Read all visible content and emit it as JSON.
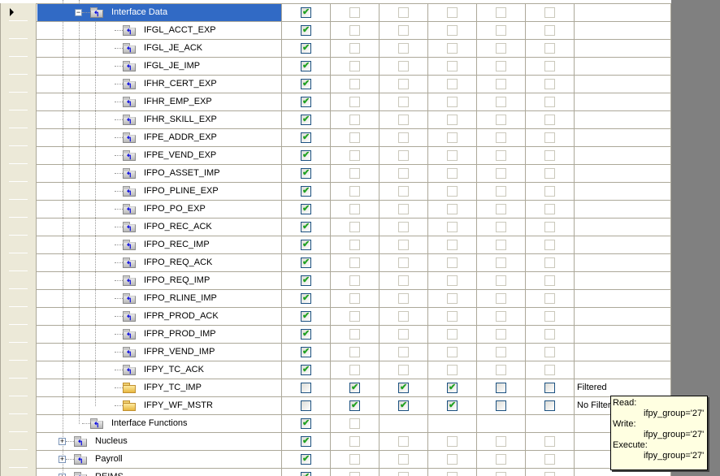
{
  "rows": [
    {
      "name": "Interface Data",
      "kind": "group-open",
      "level": 1,
      "selected": true,
      "perms": [
        "c",
        "d",
        "d",
        "d",
        "d",
        "d"
      ],
      "note": ""
    },
    {
      "name": "IFGL_ACCT_EXP",
      "kind": "leaf",
      "level": 2,
      "perms": [
        "c",
        "d",
        "d",
        "d",
        "d",
        "d"
      ],
      "note": ""
    },
    {
      "name": "IFGL_JE_ACK",
      "kind": "leaf",
      "level": 2,
      "perms": [
        "c",
        "d",
        "d",
        "d",
        "d",
        "d"
      ],
      "note": ""
    },
    {
      "name": "IFGL_JE_IMP",
      "kind": "leaf",
      "level": 2,
      "perms": [
        "c",
        "d",
        "d",
        "d",
        "d",
        "d"
      ],
      "note": ""
    },
    {
      "name": "IFHR_CERT_EXP",
      "kind": "leaf",
      "level": 2,
      "perms": [
        "c",
        "d",
        "d",
        "d",
        "d",
        "d"
      ],
      "note": ""
    },
    {
      "name": "IFHR_EMP_EXP",
      "kind": "leaf",
      "level": 2,
      "perms": [
        "c",
        "d",
        "d",
        "d",
        "d",
        "d"
      ],
      "note": ""
    },
    {
      "name": "IFHR_SKILL_EXP",
      "kind": "leaf",
      "level": 2,
      "perms": [
        "c",
        "d",
        "d",
        "d",
        "d",
        "d"
      ],
      "note": ""
    },
    {
      "name": "IFPE_ADDR_EXP",
      "kind": "leaf",
      "level": 2,
      "perms": [
        "c",
        "d",
        "d",
        "d",
        "d",
        "d"
      ],
      "note": ""
    },
    {
      "name": "IFPE_VEND_EXP",
      "kind": "leaf",
      "level": 2,
      "perms": [
        "c",
        "d",
        "d",
        "d",
        "d",
        "d"
      ],
      "note": ""
    },
    {
      "name": "IFPO_ASSET_IMP",
      "kind": "leaf",
      "level": 2,
      "perms": [
        "c",
        "d",
        "d",
        "d",
        "d",
        "d"
      ],
      "note": ""
    },
    {
      "name": "IFPO_PLINE_EXP",
      "kind": "leaf",
      "level": 2,
      "perms": [
        "c",
        "d",
        "d",
        "d",
        "d",
        "d"
      ],
      "note": ""
    },
    {
      "name": "IFPO_PO_EXP",
      "kind": "leaf",
      "level": 2,
      "perms": [
        "c",
        "d",
        "d",
        "d",
        "d",
        "d"
      ],
      "note": ""
    },
    {
      "name": "IFPO_REC_ACK",
      "kind": "leaf",
      "level": 2,
      "perms": [
        "c",
        "d",
        "d",
        "d",
        "d",
        "d"
      ],
      "note": ""
    },
    {
      "name": "IFPO_REC_IMP",
      "kind": "leaf",
      "level": 2,
      "perms": [
        "c",
        "d",
        "d",
        "d",
        "d",
        "d"
      ],
      "note": ""
    },
    {
      "name": "IFPO_REQ_ACK",
      "kind": "leaf",
      "level": 2,
      "perms": [
        "c",
        "d",
        "d",
        "d",
        "d",
        "d"
      ],
      "note": ""
    },
    {
      "name": "IFPO_REQ_IMP",
      "kind": "leaf",
      "level": 2,
      "perms": [
        "c",
        "d",
        "d",
        "d",
        "d",
        "d"
      ],
      "note": ""
    },
    {
      "name": "IFPO_RLINE_IMP",
      "kind": "leaf",
      "level": 2,
      "perms": [
        "c",
        "d",
        "d",
        "d",
        "d",
        "d"
      ],
      "note": ""
    },
    {
      "name": "IFPR_PROD_ACK",
      "kind": "leaf",
      "level": 2,
      "perms": [
        "c",
        "d",
        "d",
        "d",
        "d",
        "d"
      ],
      "note": ""
    },
    {
      "name": "IFPR_PROD_IMP",
      "kind": "leaf",
      "level": 2,
      "perms": [
        "c",
        "d",
        "d",
        "d",
        "d",
        "d"
      ],
      "note": ""
    },
    {
      "name": "IFPR_VEND_IMP",
      "kind": "leaf",
      "level": 2,
      "perms": [
        "c",
        "d",
        "d",
        "d",
        "d",
        "d"
      ],
      "note": ""
    },
    {
      "name": "IFPY_TC_ACK",
      "kind": "leaf",
      "level": 2,
      "perms": [
        "c",
        "d",
        "d",
        "d",
        "d",
        "d"
      ],
      "note": ""
    },
    {
      "name": "IFPY_TC_IMP",
      "kind": "leaf-yellow",
      "level": 2,
      "perms": [
        "u",
        "c",
        "c",
        "c",
        "u",
        "u"
      ],
      "note": "Filtered"
    },
    {
      "name": "IFPY_WF_MSTR",
      "kind": "leaf-yellow",
      "level": 2,
      "perms": [
        "u",
        "c",
        "c",
        "c",
        "u",
        "u"
      ],
      "note": "No Filter"
    },
    {
      "name": "Interface Functions",
      "kind": "group-leaf",
      "level": 1,
      "perms": [
        "c",
        "d",
        "",
        "",
        "",
        ""
      ],
      "note": ""
    },
    {
      "name": "Nucleus",
      "kind": "group-closed",
      "level": 0,
      "perms": [
        "c",
        "d",
        "d",
        "d",
        "d",
        "d"
      ],
      "note": ""
    },
    {
      "name": "Payroll",
      "kind": "group-closed",
      "level": 0,
      "perms": [
        "c",
        "d",
        "d",
        "d",
        "d",
        "d"
      ],
      "note": ""
    },
    {
      "name": "REIMS",
      "kind": "group-closed",
      "level": 0,
      "perms": [
        "c",
        "d",
        "d",
        "d",
        "d",
        "d"
      ],
      "note": ""
    }
  ],
  "tooltip": {
    "read_label": "Read:",
    "read_value": "ifpy_group='27'",
    "write_label": "Write:",
    "write_value": "ifpy_group='27'",
    "execute_label": "Execute:",
    "execute_value": "ifpy_group='27'"
  },
  "colors": {
    "selection": "#316ac5",
    "check": "#21a121",
    "tooltip_bg": "#ffffe1"
  }
}
